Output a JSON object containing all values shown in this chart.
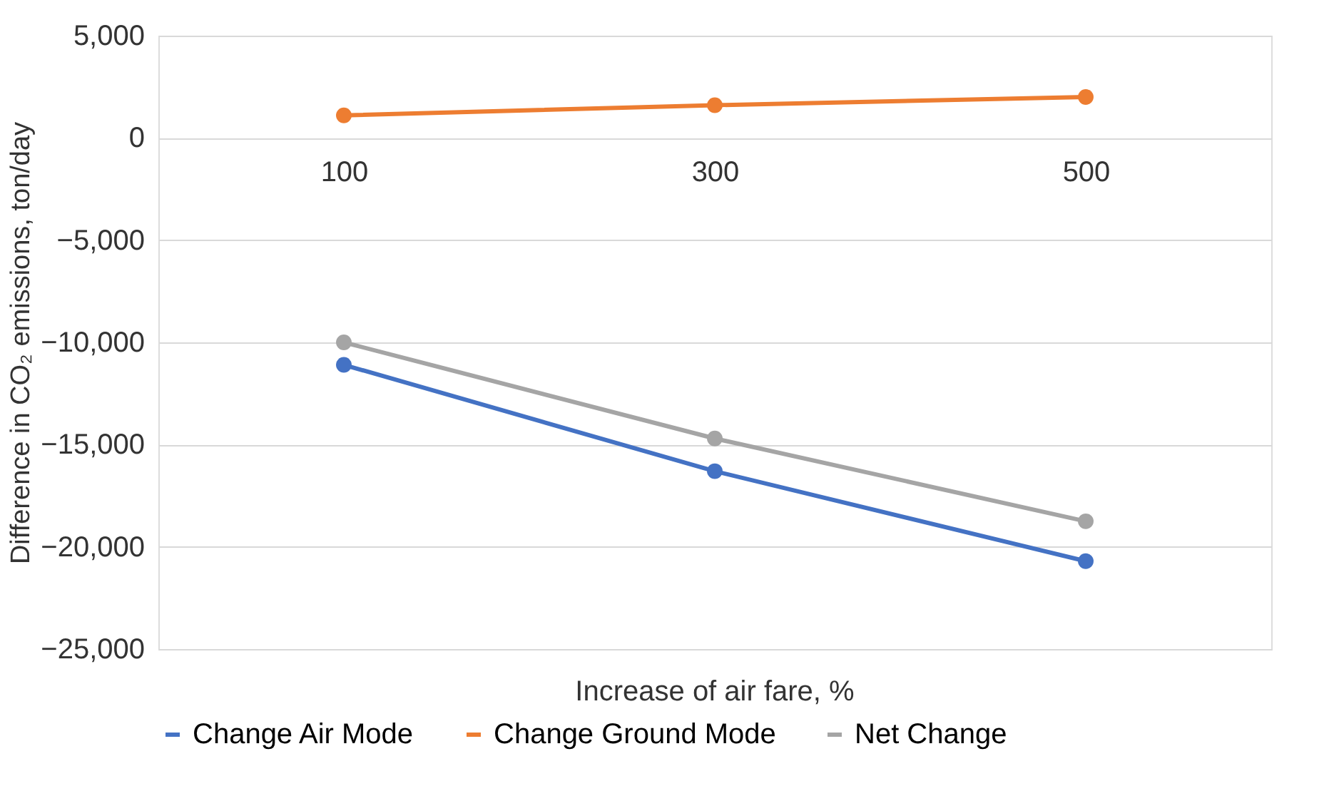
{
  "chart_data": {
    "type": "line",
    "categories": [
      "100",
      "300",
      "500"
    ],
    "series": [
      {
        "name": "Change Air Mode",
        "color": "#4472c4",
        "values": [
          -11100,
          -16300,
          -20700
        ]
      },
      {
        "name": "Change Ground Mode",
        "color": "#ed7d31",
        "values": [
          1100,
          1600,
          2000
        ]
      },
      {
        "name": "Net Change",
        "color": "#a5a5a5",
        "values": [
          -10000,
          -14700,
          -18750
        ]
      }
    ],
    "xlabel": "Increase of air fare, %",
    "ylabel": "Difference in CO₂ emissions, ton/day",
    "ylim": [
      -25000,
      5000
    ],
    "yticks": [
      {
        "value": -25000,
        "label": "−25,000"
      },
      {
        "value": -20000,
        "label": "−20,000"
      },
      {
        "value": -15000,
        "label": "−15,000"
      },
      {
        "value": -10000,
        "label": "−10,000"
      },
      {
        "value": -5000,
        "label": "−5,000"
      },
      {
        "value": 0,
        "label": "0"
      },
      {
        "value": 5000,
        "label": "5,000"
      }
    ],
    "grid": "y",
    "legend": "bottom",
    "marker": "circle",
    "line_style": "solid"
  }
}
